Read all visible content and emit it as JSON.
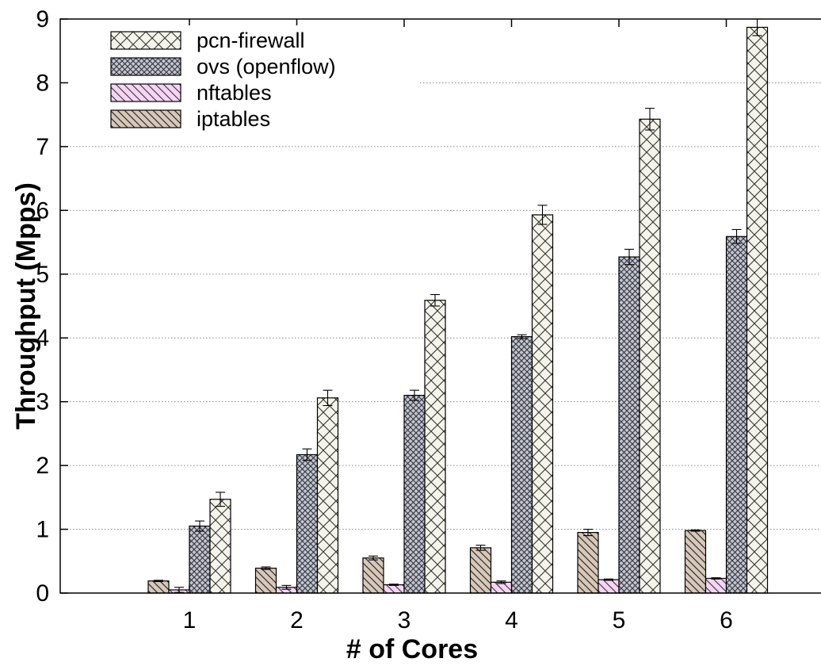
{
  "chart_data": {
    "type": "bar",
    "xlabel": "# of Cores",
    "ylabel": "Throughput (Mpps)",
    "ylim": [
      0,
      9
    ],
    "yticks": [
      0,
      1,
      2,
      3,
      4,
      5,
      6,
      7,
      8,
      9
    ],
    "categories": [
      "1",
      "2",
      "3",
      "4",
      "5",
      "6"
    ],
    "grid": "horizontal dotted",
    "legend_position": "top-left",
    "series": [
      {
        "name": "iptables",
        "values": [
          0.19,
          0.39,
          0.55,
          0.71,
          0.95,
          0.98
        ],
        "errors": [
          0.01,
          0.02,
          0.03,
          0.04,
          0.05,
          0.01
        ],
        "pattern": "diagonal-hatch",
        "color": "#d8c8b8"
      },
      {
        "name": "nftables",
        "values": [
          0.05,
          0.09,
          0.13,
          0.17,
          0.21,
          0.23
        ],
        "errors": [
          0.04,
          0.03,
          0.01,
          0.02,
          0.01,
          0.01
        ],
        "pattern": "diagonal-hatch",
        "color": "#f7d4f5"
      },
      {
        "name": "ovs (openflow)",
        "values": [
          1.05,
          2.17,
          3.1,
          4.02,
          5.27,
          5.59
        ],
        "errors": [
          0.08,
          0.09,
          0.08,
          0.03,
          0.12,
          0.11
        ],
        "pattern": "dense-crosshatch",
        "color": "#c2c5d4"
      },
      {
        "name": "pcn-firewall",
        "values": [
          1.47,
          3.06,
          4.59,
          5.93,
          7.43,
          8.87
        ],
        "errors": [
          0.11,
          0.12,
          0.09,
          0.15,
          0.17,
          0.13
        ],
        "pattern": "crosshatch",
        "color": "#f4f4ea"
      }
    ],
    "legend_order": [
      "pcn-firewall",
      "ovs (openflow)",
      "nftables",
      "iptables"
    ]
  }
}
